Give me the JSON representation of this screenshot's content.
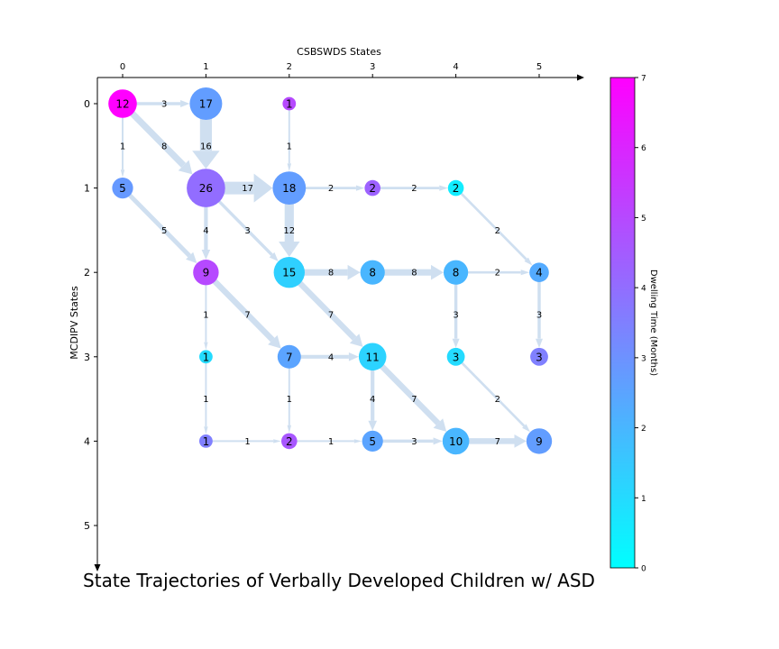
{
  "title": "State Trajectories of Verbally Developed Children w/ ASD",
  "x_axis": {
    "label": "CSBSWDS States",
    "ticks": [
      "0",
      "1",
      "2",
      "3",
      "4",
      "5"
    ]
  },
  "y_axis": {
    "label": "MCDIPV States",
    "ticks": [
      "0",
      "1",
      "2",
      "3",
      "4",
      "5"
    ]
  },
  "colorbar": {
    "label": "Dwelling Time (Months)",
    "ticks": [
      "0",
      "1",
      "2",
      "3",
      "4",
      "5",
      "6",
      "7"
    ],
    "min": 0,
    "max": 7,
    "colormap": "cool",
    "color_low": "#00ffff",
    "color_high": "#ff00ff"
  },
  "edge_color": "#cfdff0",
  "nodes": [
    {
      "col": 0,
      "row": 0,
      "label": "12",
      "count": 12,
      "dwell": 7.0
    },
    {
      "col": 1,
      "row": 0,
      "label": "17",
      "count": 17,
      "dwell": 2.7
    },
    {
      "col": 2,
      "row": 0,
      "label": "1",
      "count": 1,
      "dwell": 5.0
    },
    {
      "col": 0,
      "row": 1,
      "label": "5",
      "count": 5,
      "dwell": 2.8
    },
    {
      "col": 1,
      "row": 1,
      "label": "26",
      "count": 26,
      "dwell": 4.0
    },
    {
      "col": 2,
      "row": 1,
      "label": "18",
      "count": 18,
      "dwell": 2.7
    },
    {
      "col": 3,
      "row": 1,
      "label": "2",
      "count": 2,
      "dwell": 4.3
    },
    {
      "col": 4,
      "row": 1,
      "label": "2",
      "count": 2,
      "dwell": 0.5
    },
    {
      "col": 1,
      "row": 2,
      "label": "9",
      "count": 9,
      "dwell": 5.0
    },
    {
      "col": 2,
      "row": 2,
      "label": "15",
      "count": 15,
      "dwell": 1.3
    },
    {
      "col": 3,
      "row": 2,
      "label": "8",
      "count": 8,
      "dwell": 2.0
    },
    {
      "col": 4,
      "row": 2,
      "label": "8",
      "count": 8,
      "dwell": 2.0
    },
    {
      "col": 5,
      "row": 2,
      "label": "4",
      "count": 4,
      "dwell": 2.3
    },
    {
      "col": 1,
      "row": 3,
      "label": "1",
      "count": 1,
      "dwell": 1.0
    },
    {
      "col": 2,
      "row": 3,
      "label": "7",
      "count": 7,
      "dwell": 2.5
    },
    {
      "col": 3,
      "row": 3,
      "label": "11",
      "count": 11,
      "dwell": 1.2
    },
    {
      "col": 4,
      "row": 3,
      "label": "3",
      "count": 3,
      "dwell": 1.0
    },
    {
      "col": 5,
      "row": 3,
      "label": "3",
      "count": 3,
      "dwell": 3.5
    },
    {
      "col": 1,
      "row": 4,
      "label": "1",
      "count": 1,
      "dwell": 3.5
    },
    {
      "col": 2,
      "row": 4,
      "label": "2",
      "count": 2,
      "dwell": 4.6
    },
    {
      "col": 3,
      "row": 4,
      "label": "5",
      "count": 5,
      "dwell": 2.5
    },
    {
      "col": 4,
      "row": 4,
      "label": "10",
      "count": 10,
      "dwell": 2.0
    },
    {
      "col": 5,
      "row": 4,
      "label": "9",
      "count": 9,
      "dwell": 2.7
    }
  ],
  "edges": [
    {
      "from": [
        0,
        0
      ],
      "to": [
        1,
        0
      ],
      "label": "3",
      "weight": 3
    },
    {
      "from": [
        0,
        0
      ],
      "to": [
        0,
        1
      ],
      "label": "1",
      "weight": 1
    },
    {
      "from": [
        0,
        0
      ],
      "to": [
        1,
        1
      ],
      "label": "8",
      "weight": 8
    },
    {
      "from": [
        1,
        0
      ],
      "to": [
        1,
        1
      ],
      "label": "16",
      "weight": 16
    },
    {
      "from": [
        2,
        0
      ],
      "to": [
        2,
        1
      ],
      "label": "1",
      "weight": 1
    },
    {
      "from": [
        0,
        1
      ],
      "to": [
        1,
        2
      ],
      "label": "5",
      "weight": 5
    },
    {
      "from": [
        1,
        1
      ],
      "to": [
        2,
        1
      ],
      "label": "17",
      "weight": 17
    },
    {
      "from": [
        1,
        1
      ],
      "to": [
        1,
        2
      ],
      "label": "4",
      "weight": 4
    },
    {
      "from": [
        1,
        1
      ],
      "to": [
        2,
        2
      ],
      "label": "3",
      "weight": 3
    },
    {
      "from": [
        2,
        1
      ],
      "to": [
        3,
        1
      ],
      "label": "2",
      "weight": 2
    },
    {
      "from": [
        2,
        1
      ],
      "to": [
        2,
        2
      ],
      "label": "12",
      "weight": 12
    },
    {
      "from": [
        3,
        1
      ],
      "to": [
        4,
        1
      ],
      "label": "2",
      "weight": 2
    },
    {
      "from": [
        4,
        1
      ],
      "to": [
        5,
        2
      ],
      "label": "2",
      "weight": 2
    },
    {
      "from": [
        1,
        2
      ],
      "to": [
        1,
        3
      ],
      "label": "1",
      "weight": 1
    },
    {
      "from": [
        1,
        2
      ],
      "to": [
        2,
        3
      ],
      "label": "7",
      "weight": 7
    },
    {
      "from": [
        2,
        2
      ],
      "to": [
        3,
        2
      ],
      "label": "8",
      "weight": 8
    },
    {
      "from": [
        2,
        2
      ],
      "to": [
        3,
        3
      ],
      "label": "7",
      "weight": 7
    },
    {
      "from": [
        3,
        2
      ],
      "to": [
        4,
        2
      ],
      "label": "8",
      "weight": 8
    },
    {
      "from": [
        4,
        2
      ],
      "to": [
        5,
        2
      ],
      "label": "2",
      "weight": 2
    },
    {
      "from": [
        4,
        2
      ],
      "to": [
        4,
        3
      ],
      "label": "3",
      "weight": 3
    },
    {
      "from": [
        5,
        2
      ],
      "to": [
        5,
        3
      ],
      "label": "3",
      "weight": 3
    },
    {
      "from": [
        1,
        3
      ],
      "to": [
        1,
        4
      ],
      "label": "1",
      "weight": 1
    },
    {
      "from": [
        2,
        3
      ],
      "to": [
        3,
        3
      ],
      "label": "4",
      "weight": 4
    },
    {
      "from": [
        2,
        3
      ],
      "to": [
        2,
        4
      ],
      "label": "1",
      "weight": 1
    },
    {
      "from": [
        3,
        3
      ],
      "to": [
        3,
        4
      ],
      "label": "4",
      "weight": 4
    },
    {
      "from": [
        3,
        3
      ],
      "to": [
        4,
        4
      ],
      "label": "7",
      "weight": 7
    },
    {
      "from": [
        4,
        3
      ],
      "to": [
        5,
        4
      ],
      "label": "2",
      "weight": 2
    },
    {
      "from": [
        1,
        4
      ],
      "to": [
        2,
        4
      ],
      "label": "1",
      "weight": 1
    },
    {
      "from": [
        2,
        4
      ],
      "to": [
        3,
        4
      ],
      "label": "1",
      "weight": 1
    },
    {
      "from": [
        3,
        4
      ],
      "to": [
        4,
        4
      ],
      "label": "3",
      "weight": 3
    },
    {
      "from": [
        4,
        4
      ],
      "to": [
        5,
        4
      ],
      "label": "7",
      "weight": 7
    }
  ]
}
